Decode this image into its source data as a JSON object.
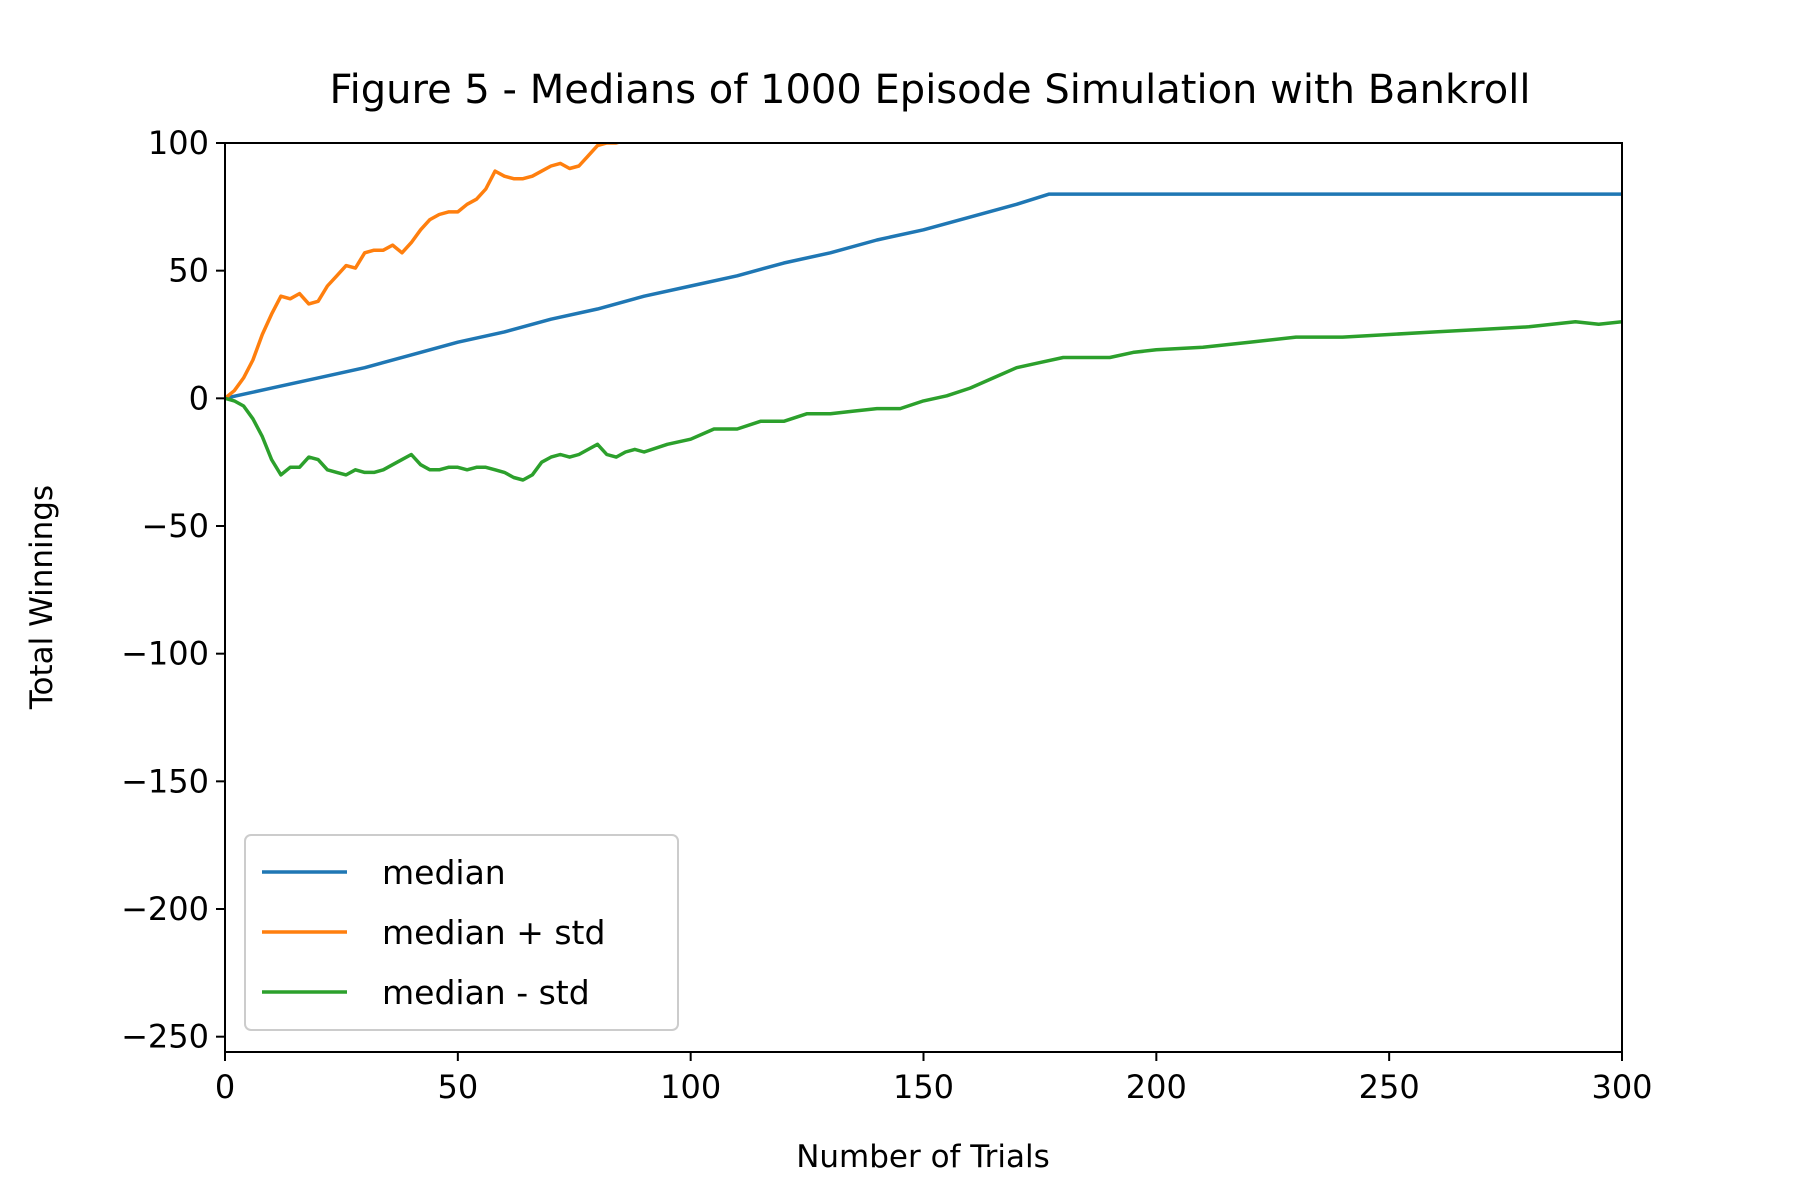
{
  "chart_data": {
    "type": "line",
    "title": "Figure 5 - Medians of 1000 Episode Simulation with Bankroll",
    "xlabel": "Number of Trials",
    "ylabel": "Total Winnings",
    "xlim": [
      0,
      300
    ],
    "ylim": [
      -256,
      100
    ],
    "xticks": [
      0,
      50,
      100,
      150,
      200,
      250,
      300
    ],
    "xtick_labels": [
      "0",
      "50",
      "100",
      "150",
      "200",
      "250",
      "300"
    ],
    "yticks": [
      100,
      50,
      0,
      -50,
      -100,
      -150,
      -200,
      -250
    ],
    "ytick_labels": [
      "100",
      "50",
      "0",
      "−50",
      "−100",
      "−150",
      "−200",
      "−250"
    ],
    "grid": false,
    "legend_position": "lower-left",
    "series": [
      {
        "name": "median",
        "color": "#1f77b4",
        "x": [
          0,
          5,
          10,
          20,
          30,
          40,
          50,
          60,
          70,
          80,
          90,
          100,
          110,
          120,
          130,
          140,
          150,
          160,
          170,
          177,
          180,
          200,
          250,
          300
        ],
        "y": [
          0,
          2,
          4,
          8,
          12,
          17,
          22,
          26,
          31,
          35,
          40,
          44,
          48,
          53,
          57,
          62,
          66,
          71,
          76,
          80,
          80,
          80,
          80,
          80
        ]
      },
      {
        "name": "median + std",
        "color": "#ff7f0e",
        "x": [
          0,
          2,
          4,
          6,
          8,
          10,
          12,
          14,
          16,
          18,
          20,
          22,
          24,
          26,
          28,
          30,
          32,
          34,
          36,
          38,
          40,
          42,
          44,
          46,
          48,
          50,
          52,
          54,
          56,
          58,
          60,
          62,
          64,
          66,
          68,
          70,
          72,
          74,
          76,
          78,
          80,
          82,
          84,
          86,
          88
        ],
        "y": [
          0,
          3,
          8,
          15,
          25,
          33,
          40,
          39,
          41,
          37,
          38,
          44,
          48,
          52,
          51,
          57,
          58,
          58,
          60,
          57,
          61,
          66,
          70,
          72,
          73,
          73,
          76,
          78,
          82,
          89,
          87,
          86,
          86,
          87,
          89,
          91,
          92,
          90,
          91,
          95,
          99,
          100,
          100,
          101,
          102
        ]
      },
      {
        "name": "median - std",
        "color": "#2ca02c",
        "x": [
          0,
          2,
          4,
          6,
          8,
          10,
          12,
          14,
          16,
          18,
          20,
          22,
          24,
          26,
          28,
          30,
          32,
          34,
          36,
          38,
          40,
          42,
          44,
          46,
          48,
          50,
          52,
          54,
          56,
          58,
          60,
          62,
          64,
          66,
          68,
          70,
          72,
          74,
          76,
          78,
          80,
          82,
          84,
          86,
          88,
          90,
          95,
          100,
          105,
          110,
          115,
          120,
          125,
          130,
          135,
          140,
          145,
          150,
          155,
          160,
          165,
          170,
          175,
          180,
          185,
          190,
          195,
          200,
          210,
          220,
          230,
          240,
          250,
          260,
          270,
          280,
          290,
          295,
          300
        ],
        "y": [
          0,
          -1,
          -3,
          -8,
          -15,
          -24,
          -30,
          -27,
          -27,
          -23,
          -24,
          -28,
          -29,
          -30,
          -28,
          -29,
          -29,
          -28,
          -26,
          -24,
          -22,
          -26,
          -28,
          -28,
          -27,
          -27,
          -28,
          -27,
          -27,
          -28,
          -29,
          -31,
          -32,
          -30,
          -25,
          -23,
          -22,
          -23,
          -22,
          -20,
          -18,
          -22,
          -23,
          -21,
          -20,
          -21,
          -18,
          -16,
          -12,
          -12,
          -9,
          -9,
          -6,
          -6,
          -5,
          -4,
          -4,
          -1,
          1,
          4,
          8,
          12,
          14,
          16,
          16,
          16,
          18,
          19,
          20,
          22,
          24,
          24,
          25,
          26,
          27,
          28,
          30,
          29,
          30
        ]
      }
    ]
  }
}
